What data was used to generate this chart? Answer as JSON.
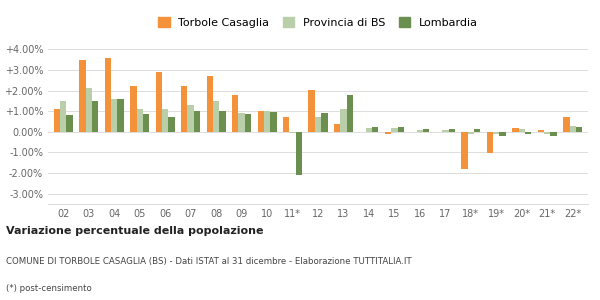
{
  "categories": [
    "02",
    "03",
    "04",
    "05",
    "06",
    "07",
    "08",
    "09",
    "10",
    "11*",
    "12",
    "13",
    "14",
    "15",
    "16",
    "17",
    "18*",
    "19*",
    "20*",
    "21*",
    "22*"
  ],
  "torbole": [
    1.1,
    3.5,
    3.6,
    2.2,
    2.9,
    2.2,
    2.7,
    1.8,
    1.0,
    0.7,
    2.05,
    0.4,
    0.0,
    -0.1,
    0.0,
    0.0,
    -1.8,
    -1.05,
    0.2,
    0.1,
    0.7
  ],
  "provincia": [
    1.5,
    2.1,
    1.6,
    1.1,
    1.1,
    1.3,
    1.5,
    0.9,
    1.0,
    -0.05,
    0.7,
    1.1,
    0.2,
    0.2,
    0.1,
    0.1,
    -0.1,
    -0.1,
    0.15,
    -0.1,
    0.3
  ],
  "lombardia": [
    0.8,
    1.5,
    1.6,
    0.85,
    0.7,
    1.0,
    1.0,
    0.85,
    0.95,
    -2.1,
    0.9,
    1.8,
    0.25,
    0.25,
    0.15,
    0.15,
    0.15,
    -0.2,
    -0.1,
    -0.2,
    0.25
  ],
  "color_torbole": "#f4923b",
  "color_provincia": "#b8cfaa",
  "color_lombardia": "#6b8f4e",
  "ylim_min": -3.5,
  "ylim_max": 4.5,
  "yticks": [
    -3.0,
    -2.0,
    -1.0,
    0.0,
    1.0,
    2.0,
    3.0,
    4.0
  ],
  "ytick_labels": [
    "-3.00%",
    "-2.00%",
    "-1.00%",
    "0.00%",
    "+1.00%",
    "+2.00%",
    "+3.00%",
    "+4.00%"
  ],
  "title_bold": "Variazione percentuale della popolazione",
  "subtitle": "COMUNE DI TORBOLE CASAGLIA (BS) - Dati ISTAT al 31 dicembre - Elaborazione TUTTITALIA.IT",
  "footnote": "(*) post-censimento",
  "legend_torbole": "Torbole Casaglia",
  "legend_provincia": "Provincia di BS",
  "legend_lombardia": "Lombardia",
  "bg_color": "#ffffff",
  "grid_color": "#dddddd"
}
